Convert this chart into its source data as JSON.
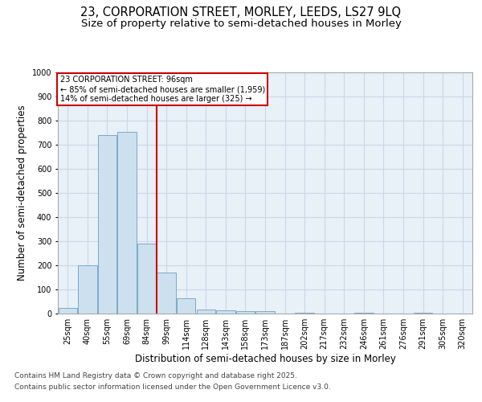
{
  "title_line1": "23, CORPORATION STREET, MORLEY, LEEDS, LS27 9LQ",
  "title_line2": "Size of property relative to semi-detached houses in Morley",
  "xlabel": "Distribution of semi-detached houses by size in Morley",
  "ylabel": "Number of semi-detached properties",
  "categories": [
    "25sqm",
    "40sqm",
    "55sqm",
    "69sqm",
    "84sqm",
    "99sqm",
    "114sqm",
    "128sqm",
    "143sqm",
    "158sqm",
    "173sqm",
    "187sqm",
    "202sqm",
    "217sqm",
    "232sqm",
    "246sqm",
    "261sqm",
    "276sqm",
    "291sqm",
    "305sqm",
    "320sqm"
  ],
  "values": [
    22,
    200,
    740,
    755,
    290,
    170,
    65,
    17,
    13,
    10,
    10,
    0,
    5,
    0,
    0,
    5,
    0,
    0,
    5,
    0,
    0
  ],
  "bar_color": "#cce0f0",
  "bar_edge_color": "#7baac8",
  "grid_color": "#c8d8e8",
  "background_color": "#e8f0f8",
  "vline_color": "#cc0000",
  "vline_x": 4.5,
  "annotation_text": "23 CORPORATION STREET: 96sqm\n← 85% of semi-detached houses are smaller (1,959)\n14% of semi-detached houses are larger (325) →",
  "annotation_box_color": "#cc0000",
  "ylim": [
    0,
    1000
  ],
  "yticks": [
    0,
    100,
    200,
    300,
    400,
    500,
    600,
    700,
    800,
    900,
    1000
  ],
  "footer_line1": "Contains HM Land Registry data © Crown copyright and database right 2025.",
  "footer_line2": "Contains public sector information licensed under the Open Government Licence v3.0.",
  "title_fontsize": 10.5,
  "subtitle_fontsize": 9.5,
  "axis_label_fontsize": 8.5,
  "tick_fontsize": 7,
  "annotation_fontsize": 7,
  "footer_fontsize": 6.5
}
